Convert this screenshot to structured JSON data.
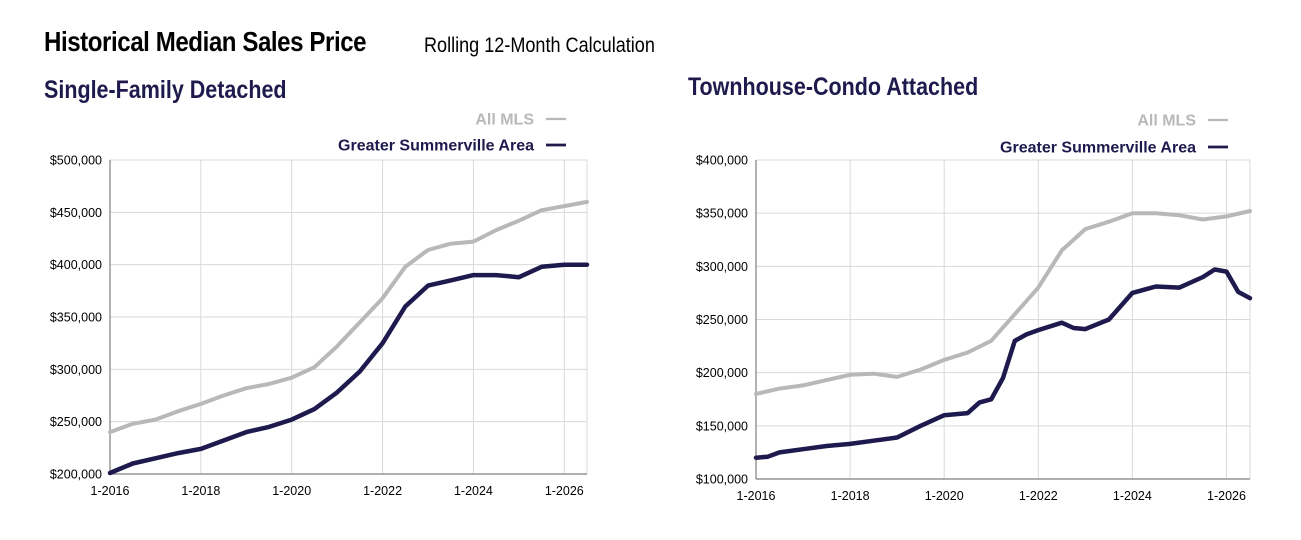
{
  "header": {
    "title": "Historical Median Sales Price",
    "subtitle": "Rolling 12-Month Calculation"
  },
  "colors": {
    "all_mls": "#b8b8b8",
    "area": "#1f1a4d",
    "title": "#1f1a4d",
    "grid": "#d9d9d9"
  },
  "chart_data": [
    {
      "type": "line",
      "title": "Single-Family Detached",
      "xlabel": "",
      "ylabel": "",
      "x_range": [
        2016.0,
        2026.5
      ],
      "ylim": [
        200000,
        500000
      ],
      "y_ticks": [
        200000,
        250000,
        300000,
        350000,
        400000,
        450000,
        500000
      ],
      "y_tick_labels": [
        "$200,000",
        "$250,000",
        "$300,000",
        "$350,000",
        "$400,000",
        "$450,000",
        "$500,000"
      ],
      "x_ticks": [
        2016,
        2018,
        2020,
        2022,
        2024,
        2026
      ],
      "x_tick_labels": [
        "1-2016",
        "1-2018",
        "1-2020",
        "1-2022",
        "1-2024",
        "1-2026"
      ],
      "grid": true,
      "legend_position": "top-right",
      "series": [
        {
          "name": "All MLS",
          "color": "#b8b8b8",
          "x": [
            2016.0,
            2016.5,
            2017.0,
            2017.5,
            2018.0,
            2018.5,
            2019.0,
            2019.5,
            2020.0,
            2020.5,
            2021.0,
            2021.5,
            2022.0,
            2022.5,
            2023.0,
            2023.5,
            2024.0,
            2024.5,
            2025.0,
            2025.5,
            2026.0,
            2026.5
          ],
          "y": [
            240000,
            248000,
            252000,
            260000,
            267000,
            275000,
            282000,
            286000,
            292000,
            302000,
            322000,
            345000,
            368000,
            398000,
            414000,
            420000,
            422000,
            433000,
            442000,
            452000,
            456000,
            460000
          ]
        },
        {
          "name": "Greater Summerville Area",
          "color": "#1f1a4d",
          "x": [
            2016.0,
            2016.5,
            2017.0,
            2017.5,
            2018.0,
            2018.5,
            2019.0,
            2019.5,
            2020.0,
            2020.5,
            2021.0,
            2021.5,
            2022.0,
            2022.5,
            2023.0,
            2023.5,
            2024.0,
            2024.5,
            2025.0,
            2025.5,
            2026.0,
            2026.5
          ],
          "y": [
            201000,
            210000,
            215000,
            220000,
            224000,
            232000,
            240000,
            245000,
            252000,
            262000,
            278000,
            298000,
            325000,
            360000,
            380000,
            385000,
            390000,
            390000,
            388000,
            398000,
            400000,
            400000
          ]
        }
      ]
    },
    {
      "type": "line",
      "title": "Townhouse-Condo Attached",
      "xlabel": "",
      "ylabel": "",
      "x_range": [
        2016.0,
        2026.5
      ],
      "ylim": [
        100000,
        400000
      ],
      "y_ticks": [
        100000,
        150000,
        200000,
        250000,
        300000,
        350000,
        400000
      ],
      "y_tick_labels": [
        "$100,000",
        "$150,000",
        "$200,000",
        "$250,000",
        "$300,000",
        "$350,000",
        "$400,000"
      ],
      "x_ticks": [
        2016,
        2018,
        2020,
        2022,
        2024,
        2026
      ],
      "x_tick_labels": [
        "1-2016",
        "1-2018",
        "1-2020",
        "1-2022",
        "1-2024",
        "1-2026"
      ],
      "grid": true,
      "legend_position": "top-right",
      "series": [
        {
          "name": "All MLS",
          "color": "#b8b8b8",
          "x": [
            2016.0,
            2016.5,
            2017.0,
            2017.5,
            2018.0,
            2018.5,
            2019.0,
            2019.5,
            2020.0,
            2020.5,
            2021.0,
            2021.5,
            2022.0,
            2022.5,
            2023.0,
            2023.5,
            2024.0,
            2024.5,
            2025.0,
            2025.5,
            2026.0,
            2026.5
          ],
          "y": [
            180000,
            185000,
            188000,
            193000,
            198000,
            199000,
            196000,
            203000,
            212000,
            219000,
            230000,
            255000,
            280000,
            315000,
            335000,
            342000,
            350000,
            350000,
            348000,
            344000,
            347000,
            352000
          ]
        },
        {
          "name": "Greater Summerville Area",
          "color": "#1f1a4d",
          "x": [
            2016.0,
            2016.25,
            2016.5,
            2017.0,
            2017.5,
            2018.0,
            2018.5,
            2019.0,
            2019.5,
            2020.0,
            2020.5,
            2020.75,
            2021.0,
            2021.25,
            2021.5,
            2021.75,
            2022.0,
            2022.5,
            2022.75,
            2023.0,
            2023.5,
            2024.0,
            2024.5,
            2025.0,
            2025.5,
            2025.75,
            2026.0,
            2026.25,
            2026.5
          ],
          "y": [
            120000,
            121000,
            125000,
            128000,
            131000,
            133000,
            136000,
            139000,
            150000,
            160000,
            162000,
            172000,
            175000,
            195000,
            230000,
            236000,
            240000,
            247000,
            242000,
            241000,
            250000,
            275000,
            281000,
            280000,
            290000,
            297000,
            295000,
            276000,
            270000
          ]
        }
      ]
    }
  ]
}
